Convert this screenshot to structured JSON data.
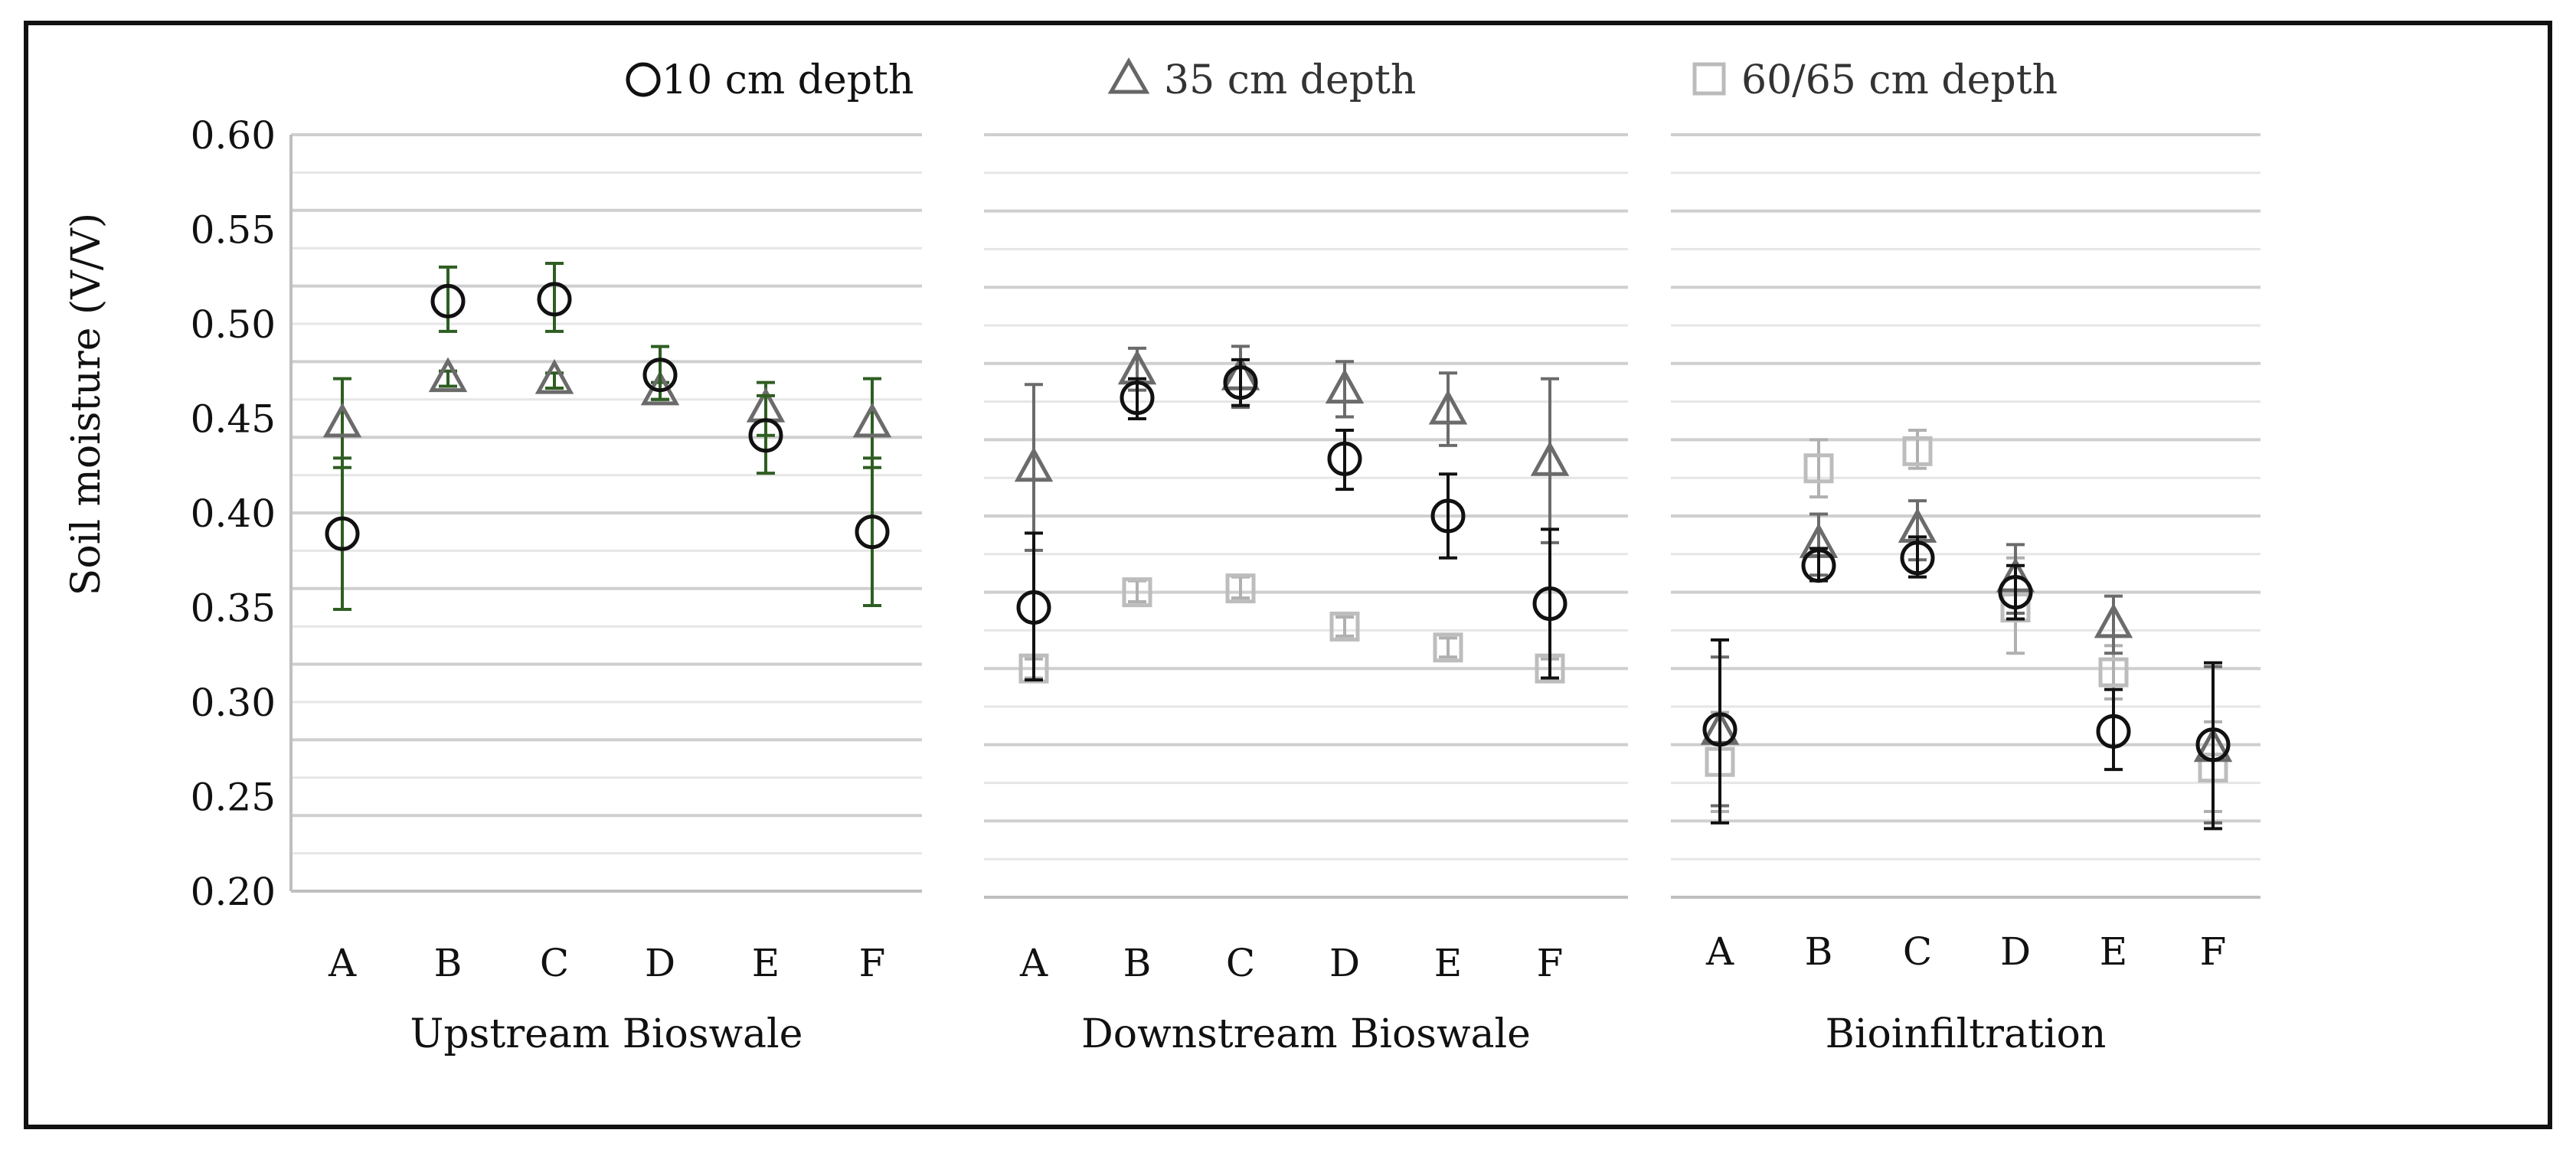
{
  "chart_data": {
    "type": "scatter",
    "ylabel": "Soil moisture (V/V)",
    "ylim": [
      0.2,
      0.6
    ],
    "yticks": [
      "0.60",
      "0.55",
      "0.50",
      "0.45",
      "0.40",
      "0.35",
      "0.30",
      "0.25",
      "0.20"
    ],
    "categories": [
      "A",
      "B",
      "C",
      "D",
      "E",
      "F"
    ],
    "legend": [
      {
        "key": "d10",
        "label": "10 cm depth",
        "marker": "circle",
        "color": "#111111"
      },
      {
        "key": "d35",
        "label": "35 cm depth",
        "marker": "triangle",
        "color": "#666666"
      },
      {
        "key": "d60",
        "label": "60/65 cm depth",
        "marker": "square",
        "color": "#bbbbbb"
      }
    ],
    "panels": [
      {
        "title": "Upstream Bioswale",
        "errorbar_color": "#2e5e22",
        "series": [
          {
            "key": "d10",
            "values": [
              0.389,
              0.512,
              0.513,
              0.473,
              0.441,
              0.39
            ],
            "err_low": [
              0.349,
              0.496,
              0.496,
              0.46,
              0.421,
              0.351
            ],
            "err_high": [
              0.429,
              0.53,
              0.532,
              0.488,
              0.462,
              0.429
            ]
          },
          {
            "key": "d35",
            "values": [
              0.447,
              0.471,
              0.47,
              0.464,
              0.455,
              0.447
            ],
            "err_low": [
              0.424,
              0.467,
              0.466,
              0.46,
              0.441,
              0.424
            ],
            "err_high": [
              0.471,
              0.475,
              0.474,
              0.469,
              0.469,
              0.471
            ]
          }
        ]
      },
      {
        "title": "Downstream Bioswale",
        "errorbar_color": "#111111",
        "series": [
          {
            "key": "d10",
            "values": [
              0.352,
              0.462,
              0.47,
              0.43,
              0.4,
              0.354
            ],
            "err_low": [
              0.314,
              0.451,
              0.458,
              0.414,
              0.378,
              0.315
            ],
            "err_high": [
              0.391,
              0.472,
              0.482,
              0.445,
              0.422,
              0.393
            ]
          },
          {
            "key": "d35",
            "values": [
              0.425,
              0.476,
              0.473,
              0.466,
              0.455,
              0.428
            ],
            "err_low": [
              0.382,
              0.466,
              0.457,
              0.452,
              0.437,
              0.386
            ],
            "err_high": [
              0.469,
              0.488,
              0.489,
              0.481,
              0.475,
              0.472
            ]
          },
          {
            "key": "d60",
            "values": [
              0.32,
              0.36,
              0.362,
              0.342,
              0.331,
              0.32
            ],
            "err_low": [
              0.315,
              0.355,
              0.357,
              0.337,
              0.326,
              0.315
            ],
            "err_high": [
              0.325,
              0.366,
              0.368,
              0.347,
              0.336,
              0.325
            ]
          }
        ]
      },
      {
        "title": "Bioinfiltration",
        "errorbar_color": "#111111",
        "series": [
          {
            "key": "d10",
            "values": [
              0.288,
              0.374,
              0.378,
              0.36,
              0.287,
              0.28
            ],
            "err_low": [
              0.239,
              0.366,
              0.368,
              0.346,
              0.267,
              0.236
            ],
            "err_high": [
              0.335,
              0.383,
              0.389,
              0.374,
              0.309,
              0.323
            ]
          },
          {
            "key": "d35",
            "values": [
              0.287,
              0.385,
              0.393,
              0.367,
              0.343,
              0.278
            ],
            "err_low": [
              0.248,
              0.369,
              0.377,
              0.349,
              0.328,
              0.239
            ],
            "err_high": [
              0.326,
              0.401,
              0.408,
              0.385,
              0.358,
              0.321
            ]
          },
          {
            "key": "d60",
            "values": [
              0.271,
              0.425,
              0.434,
              0.352,
              0.318,
              0.268
            ],
            "err_low": [
              0.245,
              0.41,
              0.425,
              0.328,
              0.304,
              0.245
            ],
            "err_high": [
              0.297,
              0.44,
              0.445,
              0.378,
              0.332,
              0.292
            ]
          }
        ]
      }
    ]
  }
}
